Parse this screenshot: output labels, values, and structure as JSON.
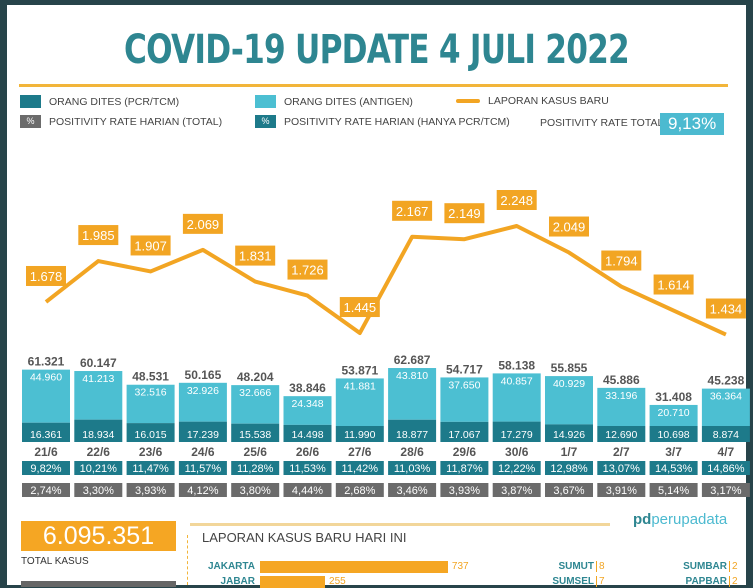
{
  "title": "COVID-19 UPDATE 4 JULI 2022",
  "legend": {
    "pcr": "ORANG DITES (PCR/TCM)",
    "antigen": "ORANG DITES (ANTIGEN)",
    "kasus": "LAPORAN KASUS BARU",
    "pr_total": "POSITIVITY RATE HARIAN (TOTAL)",
    "pr_pcr": "POSITIVITY RATE HARIAN (HANYA PCR/TCM)",
    "pct": "%",
    "positivity_total_label": "POSITIVITY RATE TOTAL",
    "positivity_total_value": "9,13%"
  },
  "colors": {
    "pcr": "#1d7a8a",
    "antigen": "#4cbfd2",
    "line": "#f2a523",
    "gray": "#6b6b6b"
  },
  "chart_data": {
    "type": "bar+line",
    "categories": [
      "21/6",
      "22/6",
      "23/6",
      "24/6",
      "25/6",
      "26/6",
      "27/6",
      "28/6",
      "29/6",
      "30/6",
      "1/7",
      "2/7",
      "3/7",
      "4/7"
    ],
    "series": [
      {
        "name": "ORANG DITES (PCR/TCM)",
        "values": [
          16361,
          18934,
          16015,
          17239,
          15538,
          14498,
          11990,
          18877,
          17067,
          17279,
          14926,
          12690,
          10698,
          8874
        ],
        "labels": [
          "16.361",
          "18.934",
          "16.015",
          "17.239",
          "15.538",
          "14.498",
          "11.990",
          "18.877",
          "17.067",
          "17.279",
          "14.926",
          "12.690",
          "10.698",
          "8.874"
        ]
      },
      {
        "name": "ORANG DITES (ANTIGEN)",
        "values": [
          44960,
          41213,
          32516,
          32926,
          32666,
          24348,
          41881,
          43810,
          37650,
          40857,
          40929,
          33196,
          20710,
          36364
        ],
        "labels": [
          "44.960",
          "41.213",
          "32.516",
          "32.926",
          "32.666",
          "24.348",
          "41.881",
          "43.810",
          "37.650",
          "40.857",
          "40.929",
          "33.196",
          "20.710",
          "36.364"
        ]
      },
      {
        "name": "TOTAL",
        "values": [
          61321,
          60147,
          48531,
          50165,
          48204,
          38846,
          53871,
          62687,
          54717,
          58138,
          55855,
          45886,
          31408,
          45238
        ],
        "labels": [
          "61.321",
          "60.147",
          "48.531",
          "50.165",
          "48.204",
          "38.846",
          "53.871",
          "62.687",
          "54.717",
          "58.138",
          "55.855",
          "45.886",
          "31.408",
          "45.238"
        ]
      },
      {
        "name": "LAPORAN KASUS BARU",
        "values": [
          1678,
          1985,
          1907,
          2069,
          1831,
          1726,
          1445,
          2167,
          2149,
          2248,
          2049,
          1794,
          1614,
          1434
        ],
        "labels": [
          "1.678",
          "1.985",
          "1.907",
          "2.069",
          "1.831",
          "1.726",
          "1.445",
          "2.167",
          "2.149",
          "2.248",
          "2.049",
          "1.794",
          "1.614",
          "1.434"
        ]
      },
      {
        "name": "POSITIVITY RATE HARIAN (HANYA PCR/TCM)",
        "labels": [
          "9,82%",
          "10,21%",
          "11,47%",
          "11,57%",
          "11,28%",
          "11,53%",
          "11,42%",
          "11,03%",
          "11,87%",
          "12,22%",
          "12,98%",
          "13,07%",
          "14,53%",
          "14,86%"
        ]
      },
      {
        "name": "POSITIVITY RATE HARIAN (TOTAL)",
        "labels": [
          "2,74%",
          "3,30%",
          "3,93%",
          "4,12%",
          "3,80%",
          "4,44%",
          "2,68%",
          "3,46%",
          "3,93%",
          "3,87%",
          "3,67%",
          "3,91%",
          "5,14%",
          "3,17%"
        ]
      }
    ]
  },
  "bottom": {
    "total_value": "6.095.351",
    "total_label": "TOTAL KASUS",
    "logo_pd": "pd",
    "logo": "perupadata",
    "section_title": "LAPORAN KASUS BARU HARI INI",
    "provinces": [
      {
        "name": "JAKARTA",
        "value": "737",
        "n": 737
      },
      {
        "name": "JABAR",
        "value": "255",
        "n": 255
      }
    ],
    "provinces_mid": [
      {
        "name": "SUMUT",
        "value": "8"
      },
      {
        "name": "SUMSEL",
        "value": "7"
      }
    ],
    "provinces_right": [
      {
        "name": "SUMBAR",
        "value": "2"
      },
      {
        "name": "PAPBAR",
        "value": "2"
      }
    ]
  }
}
